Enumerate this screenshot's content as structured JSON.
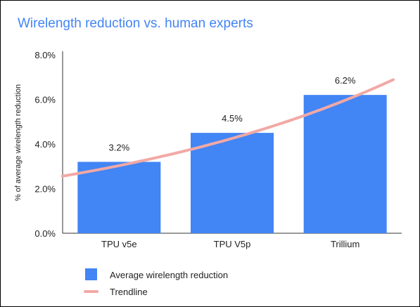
{
  "chart_data": {
    "type": "bar",
    "title": "Wirelength reduction vs. human experts",
    "xlabel": "",
    "ylabel": "% of average wirelength reduction",
    "categories": [
      "TPU v5e",
      "TPU V5p",
      "Trillium"
    ],
    "series": [
      {
        "name": "Average wirelength reduction",
        "values": [
          3.2,
          4.5,
          6.2
        ],
        "data_labels": [
          "3.2%",
          "4.5%",
          "6.2%"
        ]
      }
    ],
    "trendline": {
      "name": "Trendline",
      "kind": "exponential",
      "values_at_categories": [
        3.05,
        4.2,
        6.0
      ]
    },
    "ylim": [
      0,
      8
    ],
    "yticks": [
      0,
      2,
      4,
      6,
      8
    ],
    "ytick_labels": [
      "0.0%",
      "2.0%",
      "4.0%",
      "6.0%",
      "8.0%"
    ],
    "grid": false,
    "legend": "bottom",
    "colors": {
      "bar": "#4285f4",
      "trendline": "#f1a9a5",
      "title": "#4285f4"
    }
  }
}
